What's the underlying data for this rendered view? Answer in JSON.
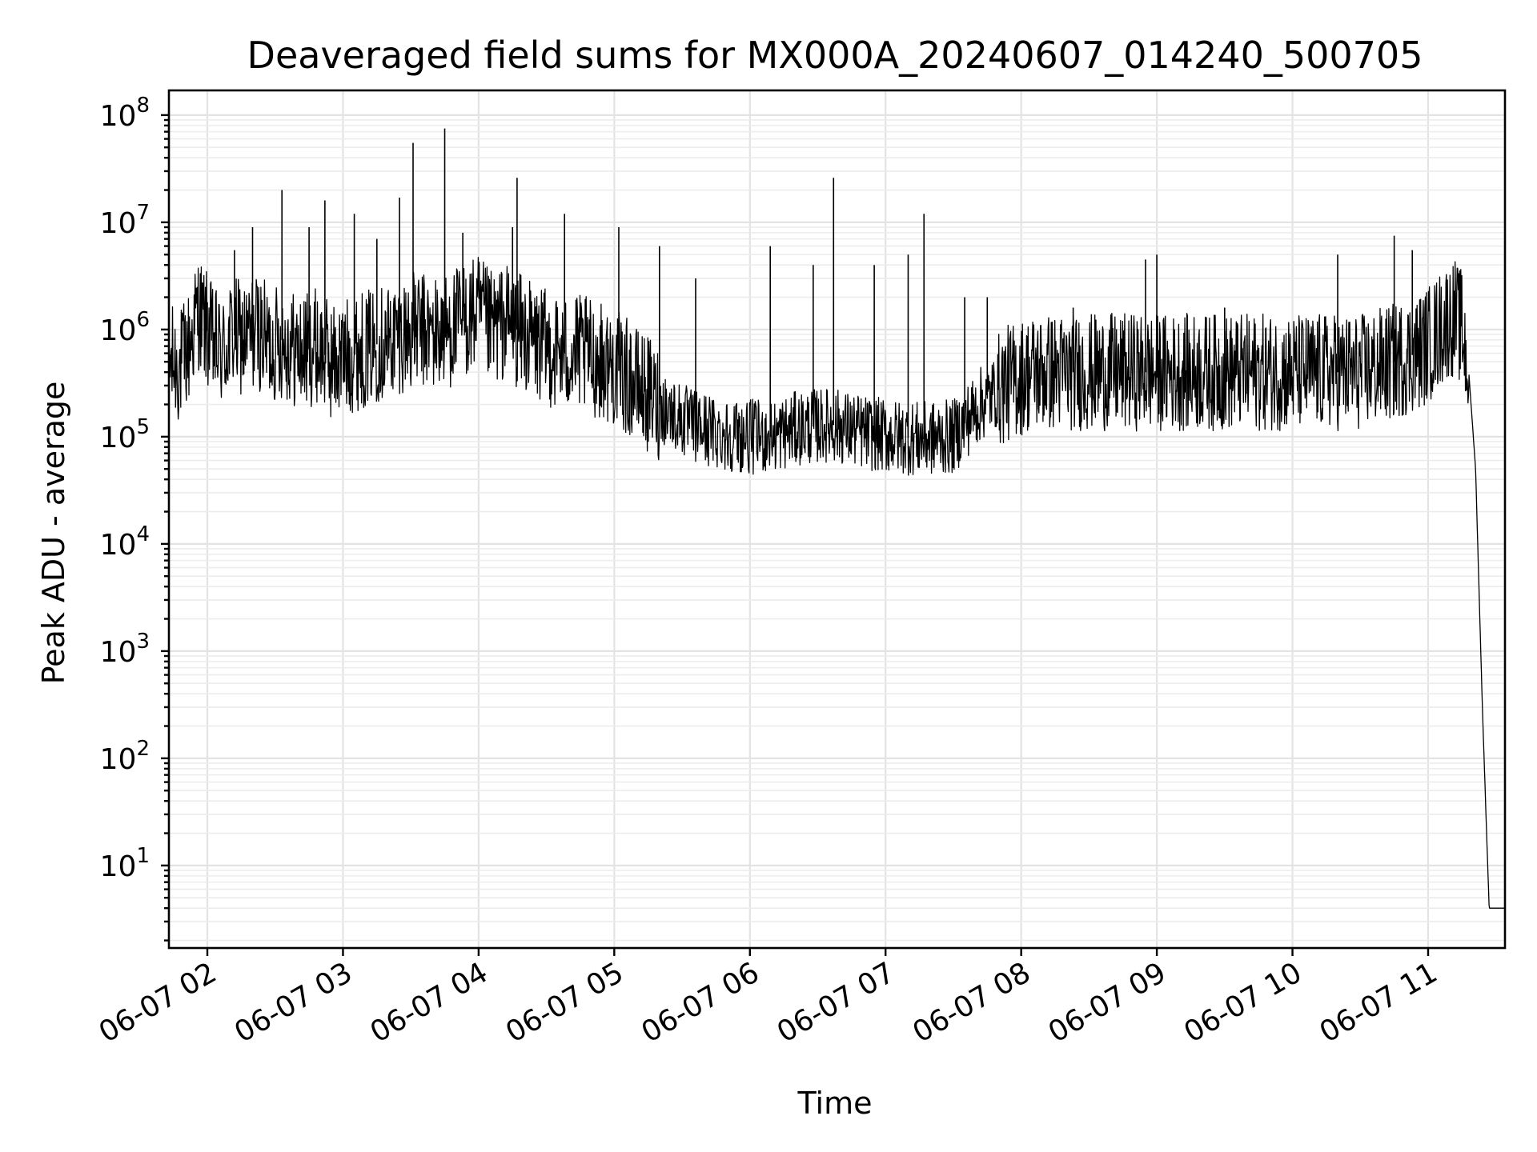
{
  "chart_data": {
    "type": "line",
    "title": "Deaveraged field sums for MX000A_20240607_014240_500705",
    "xlabel": "Time",
    "ylabel": "Peak ADU - average",
    "yscale": "log",
    "ylim": [
      1.7,
      170000000
    ],
    "xlim": [
      "2024-06-07 01:43",
      "2024-06-07 11:34"
    ],
    "grid": true,
    "line_color": "#000000",
    "x_ticks": [
      {
        "value": "2024-06-07 02:00",
        "label": "06-07 02"
      },
      {
        "value": "2024-06-07 03:00",
        "label": "06-07 03"
      },
      {
        "value": "2024-06-07 04:00",
        "label": "06-07 04"
      },
      {
        "value": "2024-06-07 05:00",
        "label": "06-07 05"
      },
      {
        "value": "2024-06-07 06:00",
        "label": "06-07 06"
      },
      {
        "value": "2024-06-07 07:00",
        "label": "06-07 07"
      },
      {
        "value": "2024-06-07 08:00",
        "label": "06-07 08"
      },
      {
        "value": "2024-06-07 09:00",
        "label": "06-07 09"
      },
      {
        "value": "2024-06-07 10:00",
        "label": "06-07 10"
      },
      {
        "value": "2024-06-07 11:00",
        "label": "06-07 11"
      }
    ],
    "y_ticks": [
      {
        "value": 10,
        "base": "10",
        "exp": "1"
      },
      {
        "value": 100,
        "base": "10",
        "exp": "2"
      },
      {
        "value": 1000,
        "base": "10",
        "exp": "3"
      },
      {
        "value": 10000,
        "base": "10",
        "exp": "4"
      },
      {
        "value": 100000,
        "base": "10",
        "exp": "5"
      },
      {
        "value": 1000000,
        "base": "10",
        "exp": "6"
      },
      {
        "value": 10000000,
        "base": "10",
        "exp": "7"
      },
      {
        "value": 100000000,
        "base": "10",
        "exp": "8"
      }
    ],
    "series": [
      {
        "x": [
          "2024-06-07 01:43",
          "2024-06-07 01:48",
          "2024-06-07 01:52",
          "2024-06-07 01:56",
          "2024-06-07 02:03",
          "2024-06-07 02:07",
          "2024-06-07 02:11",
          "2024-06-07 02:17",
          "2024-06-07 02:22",
          "2024-06-07 02:28",
          "2024-06-07 02:33",
          "2024-06-07 02:41",
          "2024-06-07 02:48",
          "2024-06-07 02:55",
          "2024-06-07 03:05",
          "2024-06-07 03:13",
          "2024-06-07 03:20",
          "2024-06-07 03:26",
          "2024-06-07 03:33",
          "2024-06-07 03:40",
          "2024-06-07 03:47",
          "2024-06-07 03:53",
          "2024-06-07 04:00",
          "2024-06-07 04:05",
          "2024-06-07 04:12",
          "2024-06-07 04:20",
          "2024-06-07 04:28",
          "2024-06-07 04:37",
          "2024-06-07 04:45",
          "2024-06-07 04:55",
          "2024-06-07 05:03",
          "2024-06-07 05:10",
          "2024-06-07 05:20",
          "2024-06-07 05:33",
          "2024-06-07 05:45",
          "2024-06-07 05:58",
          "2024-06-07 06:10",
          "2024-06-07 06:21",
          "2024-06-07 06:36",
          "2024-06-07 06:50",
          "2024-06-07 07:02",
          "2024-06-07 07:17",
          "2024-06-07 07:30",
          "2024-06-07 07:42",
          "2024-06-07 07:52",
          "2024-06-07 08:05",
          "2024-06-07 08:17",
          "2024-06-07 08:30",
          "2024-06-07 08:45",
          "2024-06-07 09:00",
          "2024-06-07 09:15",
          "2024-06-07 09:30",
          "2024-06-07 09:45",
          "2024-06-07 10:00",
          "2024-06-07 10:15",
          "2024-06-07 10:30",
          "2024-06-07 10:45",
          "2024-06-07 10:55",
          "2024-06-07 11:02",
          "2024-06-07 11:08",
          "2024-06-07 11:12",
          "2024-06-07 11:15",
          "2024-06-07 11:18",
          "2024-06-07 11:21",
          "2024-06-07 11:24",
          "2024-06-07 11:27",
          "2024-06-07 11:30",
          "2024-06-07 11:34"
        ],
        "values": [
          500000,
          450000,
          700000,
          1500000,
          700000,
          600000,
          900000,
          800000,
          1000000,
          700000,
          800000,
          600000,
          700000,
          500000,
          600000,
          700000,
          800000,
          900000,
          1000000,
          900000,
          1000000,
          1200000,
          1400000,
          1000000,
          1200000,
          900000,
          700000,
          600000,
          600000,
          500000,
          400000,
          300000,
          200000,
          130000,
          110000,
          100000,
          100000,
          120000,
          130000,
          110000,
          100000,
          95000,
          100000,
          200000,
          300000,
          400000,
          400000,
          400000,
          400000,
          400000,
          400000,
          400000,
          400000,
          400000,
          400000,
          400000,
          500000,
          600000,
          800000,
          1200000,
          1300000,
          1000000,
          400000,
          50000,
          300,
          4,
          4,
          4
        ],
        "spikes": [
          [
            "2024-06-07 02:00",
            1800000
          ],
          [
            "2024-06-07 02:12",
            5500000
          ],
          [
            "2024-06-07 02:20",
            9000000
          ],
          [
            "2024-06-07 02:33",
            20000000
          ],
          [
            "2024-06-07 02:45",
            9000000
          ],
          [
            "2024-06-07 02:52",
            16000000
          ],
          [
            "2024-06-07 03:05",
            12000000
          ],
          [
            "2024-06-07 03:15",
            7000000
          ],
          [
            "2024-06-07 03:25",
            17000000
          ],
          [
            "2024-06-07 03:31",
            55000000
          ],
          [
            "2024-06-07 03:45",
            75000000
          ],
          [
            "2024-06-07 03:53",
            8000000
          ],
          [
            "2024-06-07 04:15",
            9000000
          ],
          [
            "2024-06-07 04:17",
            26000000
          ],
          [
            "2024-06-07 04:38",
            12000000
          ],
          [
            "2024-06-07 05:02",
            9000000
          ],
          [
            "2024-06-07 05:20",
            6000000
          ],
          [
            "2024-06-07 05:36",
            3000000
          ],
          [
            "2024-06-07 06:09",
            6000000
          ],
          [
            "2024-06-07 06:28",
            4000000
          ],
          [
            "2024-06-07 06:37",
            26000000
          ],
          [
            "2024-06-07 06:55",
            4000000
          ],
          [
            "2024-06-07 07:10",
            5000000
          ],
          [
            "2024-06-07 07:17",
            12000000
          ],
          [
            "2024-06-07 07:35",
            2000000
          ],
          [
            "2024-06-07 07:45",
            2000000
          ],
          [
            "2024-06-07 08:23",
            1600000
          ],
          [
            "2024-06-07 08:55",
            4500000
          ],
          [
            "2024-06-07 09:00",
            5000000
          ],
          [
            "2024-06-07 09:30",
            1600000
          ],
          [
            "2024-06-07 10:20",
            5000000
          ],
          [
            "2024-06-07 10:45",
            7500000
          ],
          [
            "2024-06-07 10:53",
            5500000
          ]
        ]
      }
    ]
  }
}
